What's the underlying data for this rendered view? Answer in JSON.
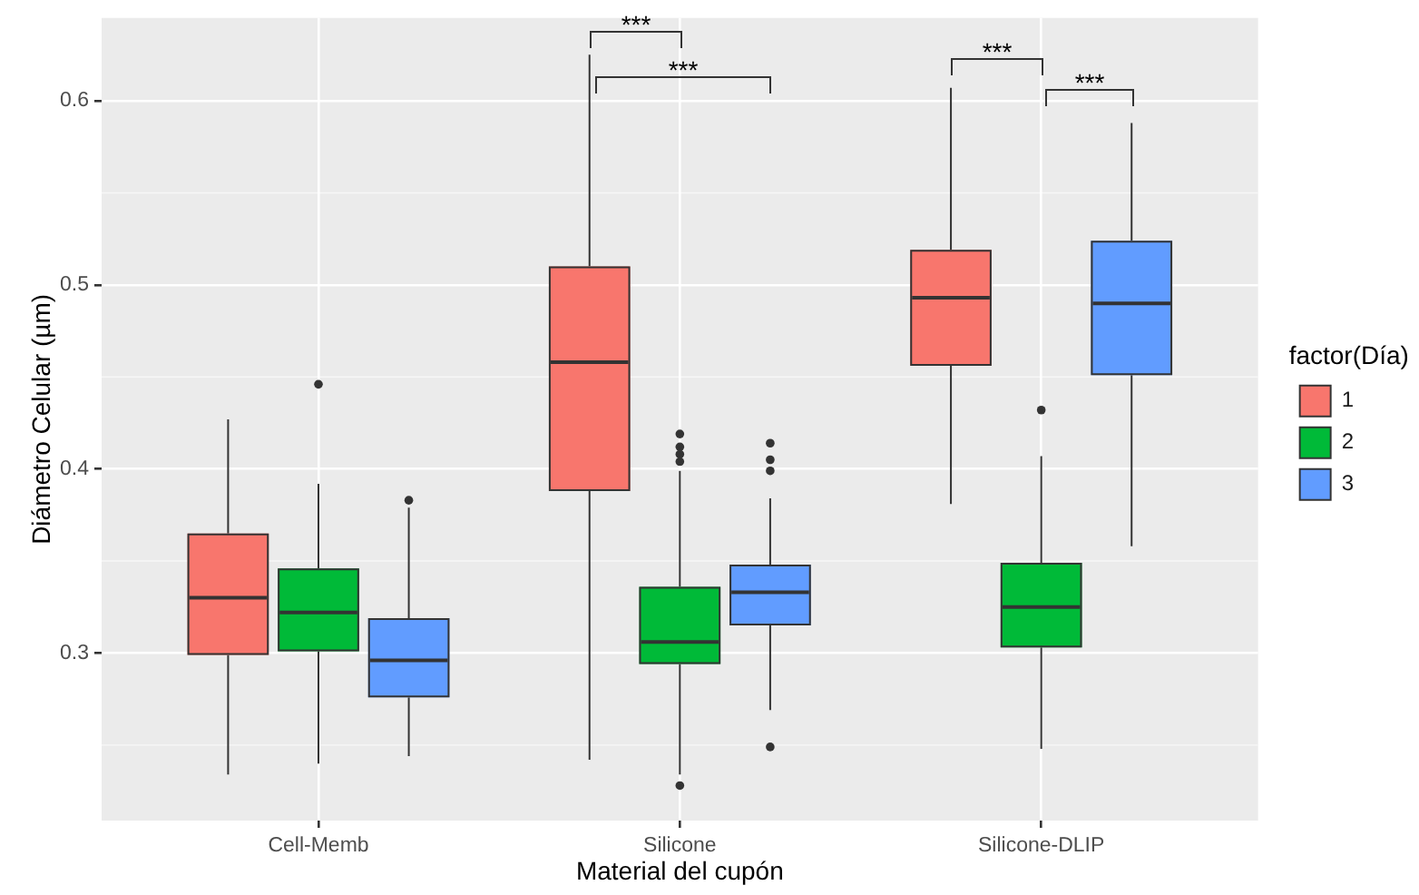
{
  "chart_data": {
    "type": "box",
    "xlabel": "Material del cupón",
    "ylabel": "Diámetro Celular (µm)",
    "legend_title": "factor(Día)",
    "categories": [
      "Cell-Memb",
      "Silicone",
      "Silicone-DLIP"
    ],
    "series": [
      {
        "name": "1",
        "color": "#f8766d",
        "boxes": [
          {
            "low": 0.234,
            "q1": 0.299,
            "median": 0.33,
            "q3": 0.365,
            "high": 0.427
          },
          {
            "low": 0.242,
            "q1": 0.388,
            "median": 0.458,
            "q3": 0.51,
            "high": 0.625
          },
          {
            "low": 0.381,
            "q1": 0.456,
            "median": 0.493,
            "q3": 0.519,
            "high": 0.607
          }
        ]
      },
      {
        "name": "2",
        "color": "#00ba38",
        "boxes": [
          {
            "low": 0.24,
            "q1": 0.301,
            "median": 0.322,
            "q3": 0.346,
            "high": 0.392,
            "outliers": [
              0.446
            ]
          },
          {
            "low": 0.234,
            "q1": 0.294,
            "median": 0.306,
            "q3": 0.336,
            "high": 0.399,
            "outliers": [
              0.419,
              0.412,
              0.408,
              0.404,
              0.228
            ]
          },
          {
            "low": 0.248,
            "q1": 0.303,
            "median": 0.325,
            "q3": 0.349,
            "high": 0.407,
            "outliers": [
              0.432
            ]
          }
        ]
      },
      {
        "name": "3",
        "color": "#619cff",
        "boxes": [
          {
            "low": 0.244,
            "q1": 0.276,
            "median": 0.296,
            "q3": 0.319,
            "high": 0.379,
            "outliers": [
              0.383
            ]
          },
          {
            "low": 0.269,
            "q1": 0.315,
            "median": 0.333,
            "q3": 0.348,
            "high": 0.384,
            "outliers": [
              0.414,
              0.405,
              0.399,
              0.249
            ]
          },
          {
            "low": 0.358,
            "q1": 0.451,
            "median": 0.49,
            "q3": 0.524,
            "high": 0.588
          }
        ]
      }
    ],
    "ylim": [
      0.209,
      0.645
    ],
    "yticks": [
      0.3,
      0.4,
      0.5,
      0.6
    ],
    "grid": true,
    "legend": "right",
    "annotations": [
      "***",
      "***",
      "***",
      "***"
    ]
  }
}
